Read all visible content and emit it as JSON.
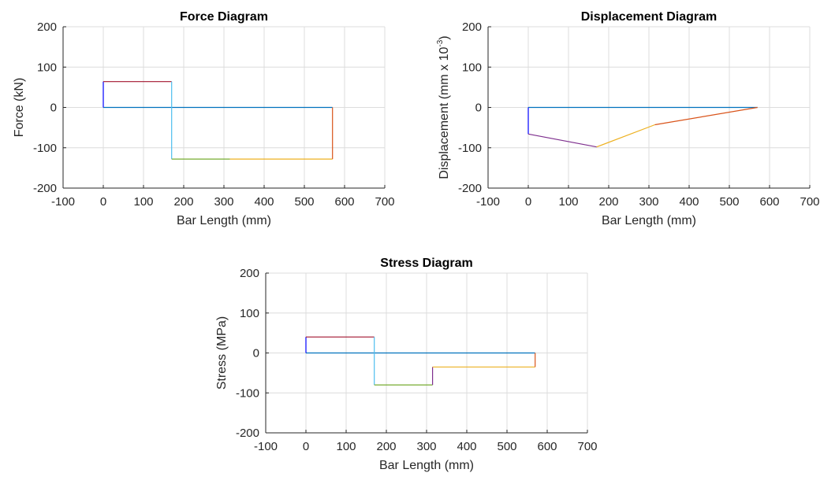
{
  "chart_data": [
    {
      "id": "force",
      "type": "line",
      "title": "Force Diagram",
      "xlabel": "Bar Length (mm)",
      "ylabel": "Force (kN)",
      "xlim": [
        -100,
        700
      ],
      "ylim": [
        -200,
        200
      ],
      "xticks": [
        -100,
        0,
        100,
        200,
        300,
        400,
        500,
        600,
        700
      ],
      "xtick_labels": [
        "-100",
        "0",
        "100",
        "200",
        "300",
        "400",
        "500",
        "600",
        "700"
      ],
      "yticks": [
        -200,
        -100,
        0,
        100,
        200
      ],
      "ytick_labels": [
        "-200",
        "-100",
        "0",
        "100",
        "200"
      ],
      "grid": true,
      "series": [
        {
          "color": "#0072BD",
          "x": [
            0,
            570
          ],
          "y": [
            0,
            0
          ]
        },
        {
          "color": "#0000FF",
          "x": [
            0,
            0
          ],
          "y": [
            0,
            64
          ]
        },
        {
          "color": "#A2142F",
          "x": [
            0,
            170
          ],
          "y": [
            64,
            64
          ]
        },
        {
          "color": "#4DBEEE",
          "x": [
            170,
            170
          ],
          "y": [
            64,
            -128
          ]
        },
        {
          "color": "#77AC30",
          "x": [
            170,
            315
          ],
          "y": [
            -128,
            -128
          ]
        },
        {
          "color": "#EDB120",
          "x": [
            315,
            570
          ],
          "y": [
            -128,
            -128
          ]
        },
        {
          "color": "#D95319",
          "x": [
            570,
            570
          ],
          "y": [
            -128,
            0
          ]
        }
      ]
    },
    {
      "id": "displacement",
      "type": "line",
      "title": "Displacement Diagram",
      "xlabel": "Bar Length (mm)",
      "ylabel": "Displacement (mm x 10",
      "ylabel_sup": "-3",
      "ylabel_end": ")",
      "xlim": [
        -100,
        700
      ],
      "ylim": [
        -200,
        200
      ],
      "xticks": [
        -100,
        0,
        100,
        200,
        300,
        400,
        500,
        600,
        700
      ],
      "xtick_labels": [
        "-100",
        "0",
        "100",
        "200",
        "300",
        "400",
        "500",
        "600",
        "700"
      ],
      "yticks": [
        -200,
        -100,
        0,
        100,
        200
      ],
      "ytick_labels": [
        "-200",
        "-100",
        "0",
        "100",
        "200"
      ],
      "grid": true,
      "series": [
        {
          "color": "#0072BD",
          "x": [
            0,
            570
          ],
          "y": [
            0,
            0
          ]
        },
        {
          "color": "#0000FF",
          "x": [
            0,
            0
          ],
          "y": [
            0,
            -66
          ]
        },
        {
          "color": "#7E2F8E",
          "x": [
            0,
            170
          ],
          "y": [
            -66,
            -98
          ]
        },
        {
          "color": "#EDB120",
          "x": [
            170,
            315
          ],
          "y": [
            -98,
            -43
          ]
        },
        {
          "color": "#D95319",
          "x": [
            315,
            570
          ],
          "y": [
            -43,
            0
          ]
        }
      ]
    },
    {
      "id": "stress",
      "type": "line",
      "title": "Stress Diagram",
      "xlabel": "Bar Length (mm)",
      "ylabel": "Stress (MPa)",
      "xlim": [
        -100,
        700
      ],
      "ylim": [
        -200,
        200
      ],
      "xticks": [
        -100,
        0,
        100,
        200,
        300,
        400,
        500,
        600,
        700
      ],
      "xtick_labels": [
        "-100",
        "0",
        "100",
        "200",
        "300",
        "400",
        "500",
        "600",
        "700"
      ],
      "yticks": [
        -200,
        -100,
        0,
        100,
        200
      ],
      "ytick_labels": [
        "-200",
        "-100",
        "0",
        "100",
        "200"
      ],
      "grid": true,
      "series": [
        {
          "color": "#0072BD",
          "x": [
            0,
            570
          ],
          "y": [
            0,
            0
          ]
        },
        {
          "color": "#0000FF",
          "x": [
            0,
            0
          ],
          "y": [
            0,
            40
          ]
        },
        {
          "color": "#A2142F",
          "x": [
            0,
            170
          ],
          "y": [
            40,
            40
          ]
        },
        {
          "color": "#4DBEEE",
          "x": [
            170,
            170
          ],
          "y": [
            40,
            -80
          ]
        },
        {
          "color": "#77AC30",
          "x": [
            170,
            315
          ],
          "y": [
            -80,
            -80
          ]
        },
        {
          "color": "#7E2F8E",
          "x": [
            315,
            315
          ],
          "y": [
            -80,
            -35
          ]
        },
        {
          "color": "#EDB120",
          "x": [
            315,
            570
          ],
          "y": [
            -35,
            -35
          ]
        },
        {
          "color": "#D95319",
          "x": [
            570,
            570
          ],
          "y": [
            -35,
            0
          ]
        }
      ]
    }
  ]
}
